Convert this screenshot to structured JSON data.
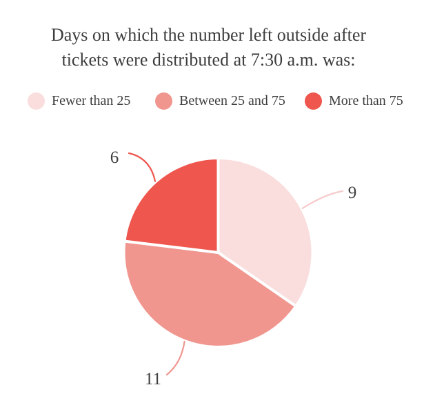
{
  "title": {
    "line1": "Days on which the number left outside after",
    "line2": "tickets were distributed at 7:30 a.m. was:"
  },
  "legend": [
    {
      "label": "Fewer than 25",
      "color": "#fadddd"
    },
    {
      "label": "Between 25 and 75",
      "color": "#f0968f"
    },
    {
      "label": "More than 75",
      "color": "#ee564e"
    }
  ],
  "chart_data": {
    "type": "pie",
    "title": "Days on which the number left outside after tickets were distributed at 7:30 a.m. was:",
    "categories": [
      "Fewer than 25",
      "Between 25 and 75",
      "More than 75"
    ],
    "values": [
      9,
      11,
      6
    ],
    "colors": [
      "#fadddd",
      "#f0968f",
      "#ee564e"
    ],
    "leader_colors": [
      "#f6caca",
      "#f0968f",
      "#ee564e"
    ],
    "slice_label_color": "#3d3d3d",
    "background": "#ffffff",
    "start_angle": "12 o'clock",
    "direction": "clockwise",
    "legend_position": "top",
    "data_labels": "outside with curved leader lines"
  }
}
